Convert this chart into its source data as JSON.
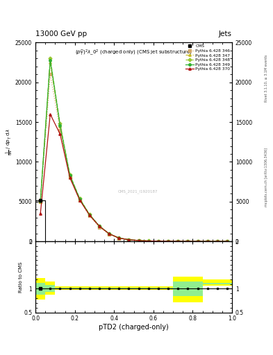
{
  "title_top": "13000 GeV pp",
  "title_right": "Jets",
  "plot_title": "$(p_T^D)^2\\lambda\\_0^2$ (charged only) (CMS jet substructure)",
  "xlabel": "pTD2 (charged-only)",
  "ylabel_main": "1 / mathrm d N / mathrm d p_T mathrm d lambda",
  "ylabel_ratio": "Ratio to CMS",
  "right_label": "mcplots.cern.ch [arXiv:1306.3436]",
  "right_label2": "Rivet 3.1.10, ≥ 3.1M events",
  "watermark": "CMS_2021_I1920187",
  "xlim": [
    0,
    1
  ],
  "ylim_main": [
    0,
    25000
  ],
  "ylim_ratio": [
    0.5,
    2.0
  ],
  "pythia_x": [
    0.025,
    0.075,
    0.125,
    0.175,
    0.225,
    0.275,
    0.325,
    0.375,
    0.425,
    0.475,
    0.525,
    0.575,
    0.625,
    0.675,
    0.725,
    0.775,
    0.825,
    0.875,
    0.925,
    0.975
  ],
  "cms_x": [
    0.025,
    0.075,
    0.125,
    0.175,
    0.225,
    0.275,
    0.325,
    0.375,
    0.425,
    0.475,
    0.525,
    0.575,
    0.625,
    0.675,
    0.725,
    0.775,
    0.825,
    0.875,
    0.925,
    0.975
  ],
  "cms_y": [
    5200,
    0,
    0,
    0,
    0,
    0,
    0,
    0,
    0,
    0,
    0,
    0,
    0,
    0,
    0,
    0,
    0,
    0,
    0,
    0
  ],
  "p346_y": [
    5000,
    21000,
    14000,
    8000,
    5200,
    3200,
    1800,
    900,
    400,
    200,
    100,
    50,
    30,
    20,
    15,
    10,
    8,
    5,
    3,
    2
  ],
  "p347_y": [
    5000,
    22500,
    14500,
    8200,
    5300,
    3300,
    1900,
    950,
    420,
    210,
    105,
    55,
    32,
    22,
    16,
    11,
    8,
    5,
    3,
    2
  ],
  "p348_y": [
    5100,
    23000,
    14800,
    8400,
    5400,
    3400,
    1950,
    970,
    430,
    220,
    110,
    58,
    34,
    23,
    17,
    12,
    8,
    5,
    3,
    2
  ],
  "p349_y": [
    5100,
    22800,
    14600,
    8300,
    5350,
    3350,
    1920,
    960,
    425,
    215,
    107,
    56,
    33,
    22,
    16,
    11,
    8,
    5,
    3,
    2
  ],
  "p370_y": [
    3500,
    16000,
    13500,
    8000,
    5200,
    3300,
    1900,
    950,
    420,
    210,
    105,
    55,
    32,
    22,
    16,
    11,
    8,
    5,
    3,
    2
  ],
  "p346_color": "#d4a96a",
  "p347_color": "#c8b820",
  "p348_color": "#98c832",
  "p349_color": "#30b030",
  "p370_color": "#b01010",
  "cms_color": "#000000",
  "ratio_band_x": [
    0.0,
    0.05,
    0.1,
    0.15,
    0.2,
    0.25,
    0.3,
    0.35,
    0.4,
    0.45,
    0.5,
    0.55,
    0.6,
    0.65,
    0.7,
    0.75,
    0.8,
    0.85,
    0.9,
    0.95
  ],
  "ratio_band_w": [
    0.05,
    0.05,
    0.05,
    0.05,
    0.05,
    0.05,
    0.05,
    0.05,
    0.05,
    0.05,
    0.05,
    0.05,
    0.05,
    0.05,
    0.05,
    0.05,
    0.05,
    0.05,
    0.05,
    0.05
  ],
  "ratio_yellow_lo": [
    0.77,
    0.88,
    0.97,
    0.97,
    0.97,
    0.97,
    0.97,
    0.97,
    0.97,
    0.97,
    0.97,
    0.97,
    0.97,
    0.97,
    0.72,
    0.72,
    0.72,
    1.06,
    1.06,
    1.06
  ],
  "ratio_yellow_hi": [
    1.22,
    1.15,
    1.05,
    1.05,
    1.05,
    1.05,
    1.05,
    1.05,
    1.05,
    1.05,
    1.05,
    1.05,
    1.05,
    1.05,
    1.26,
    1.26,
    1.26,
    1.2,
    1.2,
    1.2
  ],
  "ratio_green_lo": [
    0.88,
    0.93,
    0.99,
    0.99,
    0.99,
    0.99,
    0.99,
    0.99,
    0.99,
    0.99,
    0.99,
    0.99,
    0.99,
    0.99,
    0.84,
    0.84,
    0.84,
    1.09,
    1.09,
    1.09
  ],
  "ratio_green_hi": [
    1.12,
    1.08,
    1.02,
    1.02,
    1.02,
    1.02,
    1.02,
    1.02,
    1.02,
    1.02,
    1.02,
    1.02,
    1.02,
    1.02,
    1.15,
    1.15,
    1.15,
    1.13,
    1.13,
    1.13
  ],
  "yticks_main": [
    0,
    5000,
    10000,
    15000,
    20000,
    25000
  ],
  "ytick_labels_main": [
    "0",
    "5000",
    "10000",
    "15000",
    "20000",
    "25000"
  ],
  "yticks_ratio": [
    0.5,
    1.0,
    2.0
  ],
  "ytick_labels_ratio": [
    "0.5",
    "1",
    "2"
  ]
}
